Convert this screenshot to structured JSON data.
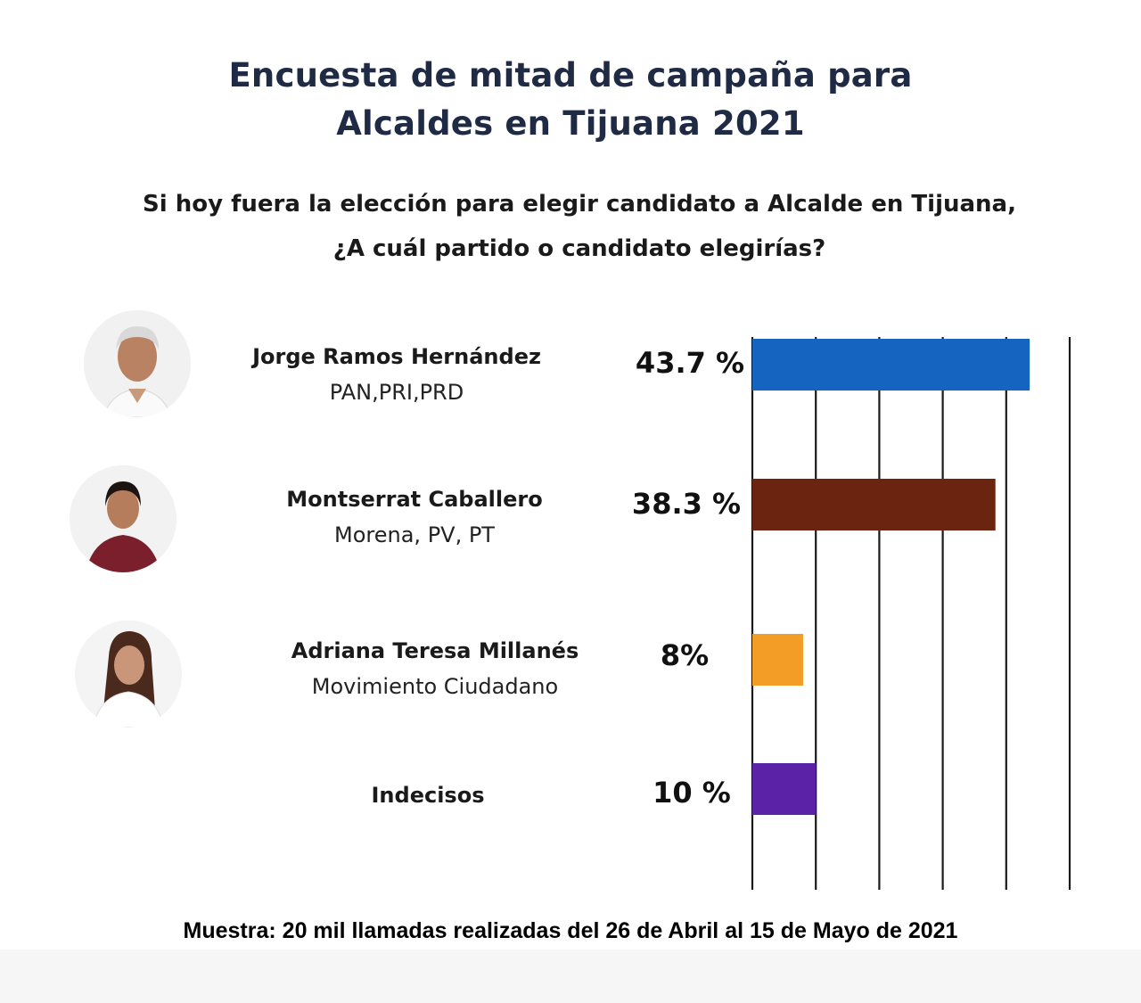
{
  "header": {
    "title_line1": "Encuesta de mitad de campaña para",
    "title_line2": "Alcaldes en Tijuana 2021",
    "question_line1": "Si hoy fuera la elección para elegir candidato a Alcalde en Tijuana,",
    "question_line2": "¿A cuál partido o candidato elegirías?"
  },
  "candidates": [
    {
      "name": "Jorge Ramos Hernández",
      "party": "PAN,PRI,PRD",
      "pct_label": "43.7 %",
      "avatar": "man-gray-hair-portrait"
    },
    {
      "name": "Montserrat Caballero",
      "party": "Morena, PV, PT",
      "pct_label": "38.3 %",
      "avatar": "woman-maroon-shirt-portrait"
    },
    {
      "name": "Adriana Teresa Millanés",
      "party": "Movimiento Ciudadano",
      "pct_label": "8%",
      "avatar": "woman-white-shirt-portrait"
    },
    {
      "name": "Indecisos",
      "party": "",
      "pct_label": "10 %",
      "avatar": ""
    }
  ],
  "chart_data": {
    "type": "bar",
    "orientation": "horizontal",
    "categories": [
      "Jorge Ramos Hernández",
      "Montserrat Caballero",
      "Adriana Teresa Millanés",
      "Indecisos"
    ],
    "values": [
      43.7,
      38.3,
      8,
      10
    ],
    "colors": [
      "#1565c0",
      "#6b2410",
      "#f39c26",
      "#5b21a6"
    ],
    "grid": true,
    "xlim": [
      0,
      50
    ]
  },
  "footer": {
    "note": "Muestra: 20 mil llamadas realizadas del 26 de Abril al 15 de Mayo de 2021"
  }
}
